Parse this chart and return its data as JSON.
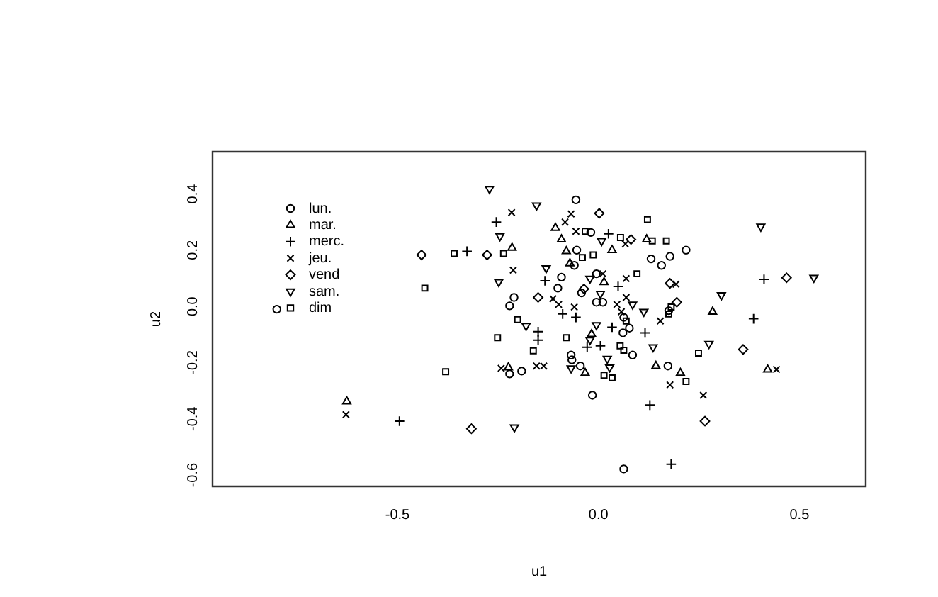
{
  "chart_data": {
    "type": "scatter",
    "xlabel": "u1",
    "ylabel": "u2",
    "xlim": [
      -0.96,
      0.665
    ],
    "xticks": [
      {
        "value": -0.5,
        "label": "-0.5"
      },
      {
        "value": 0,
        "label": "0.0"
      },
      {
        "value": 0.5,
        "label": "0.5"
      }
    ],
    "ylim": [
      -0.64,
      0.55
    ],
    "yticks": [
      {
        "value": -0.6,
        "label": "-0.6"
      },
      {
        "value": -0.4,
        "label": "-0.4"
      },
      {
        "value": -0.2,
        "label": "-0.2"
      },
      {
        "value": 0,
        "label": "0.0"
      },
      {
        "value": 0.2,
        "label": "0.2"
      },
      {
        "value": 0.4,
        "label": "0.4"
      }
    ],
    "grid": false,
    "legend": "top left",
    "series": [
      {
        "name": "lun.",
        "color": "#000000",
        "marker": "circle",
        "x": [
          -0.8,
          -0.092,
          -0.101,
          -0.21,
          -0.221,
          -0.221,
          -0.191,
          -0.056,
          -0.019,
          0.218,
          -0.054,
          0.131,
          0.178,
          -0.06,
          0.157,
          -0.005,
          -0.042,
          -0.005,
          0.011,
          0.175,
          0.063,
          0.077,
          0.061,
          0.085,
          -0.068,
          -0.066,
          -0.045,
          0.173,
          -0.015,
          0.063
        ],
        "values": [
          -0.01,
          0.104,
          0.065,
          0.032,
          0.002,
          -0.24,
          -0.23,
          0.379,
          0.263,
          0.2,
          0.2,
          0.169,
          0.178,
          0.146,
          0.146,
          0.116,
          0.048,
          0.015,
          0.015,
          -0.015,
          -0.039,
          -0.077,
          -0.094,
          -0.173,
          -0.173,
          -0.19,
          -0.212,
          -0.212,
          -0.316,
          -0.578
        ]
      },
      {
        "name": "mar.",
        "color": "#000000",
        "marker": "triangle",
        "x": [
          -0.626,
          -0.107,
          -0.092,
          -0.215,
          -0.224,
          0.12,
          0.034,
          -0.08,
          -0.071,
          0.014,
          -0.017,
          -0.033,
          0.143,
          0.204,
          0.284,
          0.421
        ],
        "values": [
          -0.338,
          0.279,
          0.238,
          0.208,
          -0.217,
          0.238,
          0.2,
          0.196,
          0.153,
          0.086,
          -0.099,
          -0.237,
          -0.212,
          -0.237,
          -0.019,
          -0.225
        ]
      },
      {
        "name": "merc.",
        "color": "#000000",
        "marker": "cross",
        "x": [
          -0.495,
          -0.254,
          -0.327,
          -0.133,
          -0.089,
          -0.15,
          -0.15,
          0.025,
          0.049,
          -0.056,
          0.116,
          0.034,
          -0.028,
          0.005,
          0.128,
          0.181,
          0.412,
          0.386
        ],
        "values": [
          -0.408,
          0.3,
          0.196,
          0.091,
          -0.027,
          -0.09,
          -0.12,
          0.258,
          0.071,
          -0.039,
          -0.094,
          -0.074,
          -0.145,
          -0.14,
          -0.351,
          -0.561,
          0.096,
          -0.044
        ]
      },
      {
        "name": "jeu.",
        "color": "#000000",
        "marker": "x",
        "x": [
          -0.628,
          -0.216,
          -0.083,
          -0.212,
          -0.113,
          -0.099,
          -0.242,
          -0.154,
          -0.136,
          -0.068,
          -0.056,
          0.067,
          0.011,
          0.069,
          0.193,
          0.069,
          0.046,
          -0.06,
          0.057,
          0.154,
          0.178,
          0.261,
          0.443
        ],
        "values": [
          -0.385,
          0.334,
          0.3,
          0.129,
          0.027,
          0.007,
          -0.22,
          -0.212,
          -0.212,
          0.329,
          0.267,
          0.222,
          0.116,
          0.099,
          0.079,
          0.032,
          0.007,
          -0.002,
          -0.019,
          -0.052,
          -0.279,
          -0.316,
          -0.224
        ]
      },
      {
        "name": "vend",
        "color": "#000000",
        "marker": "diamond",
        "x": [
          -0.44,
          -0.277,
          -0.15,
          -0.316,
          0.002,
          0.081,
          -0.036,
          0.178,
          0.195,
          0.265,
          0.468,
          0.36
        ],
        "values": [
          0.183,
          0.183,
          0.032,
          -0.435,
          0.331,
          0.238,
          0.062,
          0.082,
          0.015,
          -0.408,
          0.102,
          -0.153
        ]
      },
      {
        "name": "sam.",
        "color": "#000000",
        "marker": "triangle-down",
        "x": [
          -0.271,
          -0.154,
          -0.245,
          -0.248,
          -0.13,
          -0.18,
          -0.209,
          0.008,
          -0.021,
          0.005,
          0.085,
          0.113,
          -0.005,
          -0.021,
          0.136,
          -0.068,
          0.022,
          0.028,
          0.275,
          0.306,
          0.404,
          0.536
        ],
        "values": [
          0.418,
          0.359,
          0.25,
          0.087,
          0.136,
          -0.069,
          -0.43,
          0.233,
          0.099,
          0.045,
          0.007,
          -0.019,
          -0.066,
          -0.119,
          -0.145,
          -0.22,
          -0.186,
          -0.217,
          -0.133,
          0.04,
          0.284,
          0.102
        ]
      },
      {
        "name": "dim",
        "color": "#000000",
        "marker": "square",
        "x": [
          -0.432,
          -0.359,
          -0.236,
          -0.201,
          -0.251,
          -0.162,
          -0.38,
          0.122,
          -0.033,
          0.055,
          0.134,
          0.169,
          -0.04,
          -0.013,
          0.096,
          0.181,
          0.069,
          0.175,
          -0.08,
          0.054,
          0.063,
          0.014,
          0.034,
          0.218,
          0.249
        ],
        "values": [
          0.065,
          0.188,
          0.188,
          -0.047,
          -0.111,
          -0.158,
          -0.232,
          0.309,
          0.267,
          0.245,
          0.233,
          0.233,
          0.174,
          0.183,
          0.116,
          -0.002,
          -0.052,
          -0.027,
          -0.111,
          -0.14,
          -0.156,
          -0.245,
          -0.254,
          -0.267,
          -0.166
        ]
      }
    ]
  }
}
